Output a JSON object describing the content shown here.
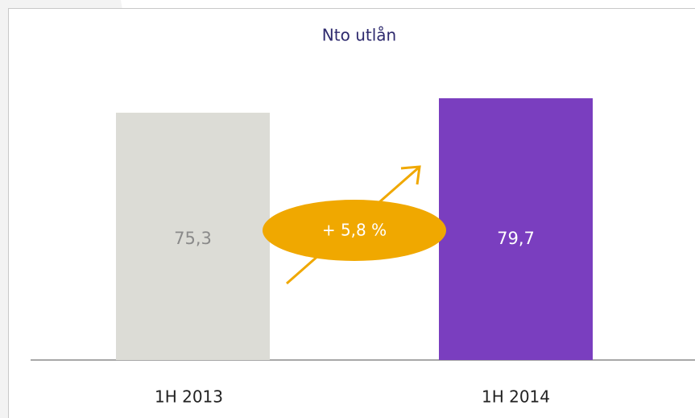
{
  "chart_data": {
    "type": "bar",
    "title": "Nto utlån",
    "categories": [
      "1H 2013",
      "1H 2014"
    ],
    "values": [
      75.3,
      79.7
    ],
    "value_labels": [
      "75,3",
      "79,7"
    ],
    "colors": [
      "#dcdcd6",
      "#7a3ebf"
    ],
    "annotation": "+ 5,8 %"
  }
}
